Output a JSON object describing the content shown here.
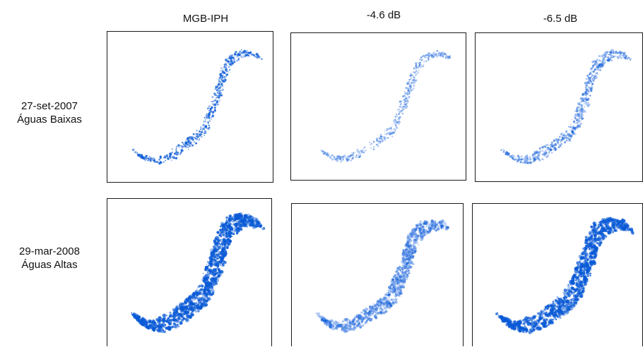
{
  "columns": [
    {
      "label": "MGB-IPH"
    },
    {
      "label": "-4.6 dB"
    },
    {
      "label": "-6.5 dB"
    }
  ],
  "rows": [
    {
      "date": "27-set-2007",
      "condition": "Águas Baixas"
    },
    {
      "date": "29-mar-2008",
      "condition": "Águas Altas"
    }
  ],
  "colors": {
    "water": "#0a5ad6",
    "water_light": "#5b8fe8",
    "border": "#1a1a1a"
  },
  "panels": [
    {
      "name": "panel-low-mgb",
      "density": 0.35,
      "intensity": 0.9
    },
    {
      "name": "panel-low-46",
      "density": 0.25,
      "intensity": 0.35
    },
    {
      "name": "panel-low-65",
      "density": 0.45,
      "intensity": 0.45
    },
    {
      "name": "panel-high-mgb",
      "density": 1.0,
      "intensity": 1.0
    },
    {
      "name": "panel-high-46",
      "density": 0.75,
      "intensity": 0.45
    },
    {
      "name": "panel-high-65",
      "density": 1.0,
      "intensity": 1.0
    }
  ]
}
